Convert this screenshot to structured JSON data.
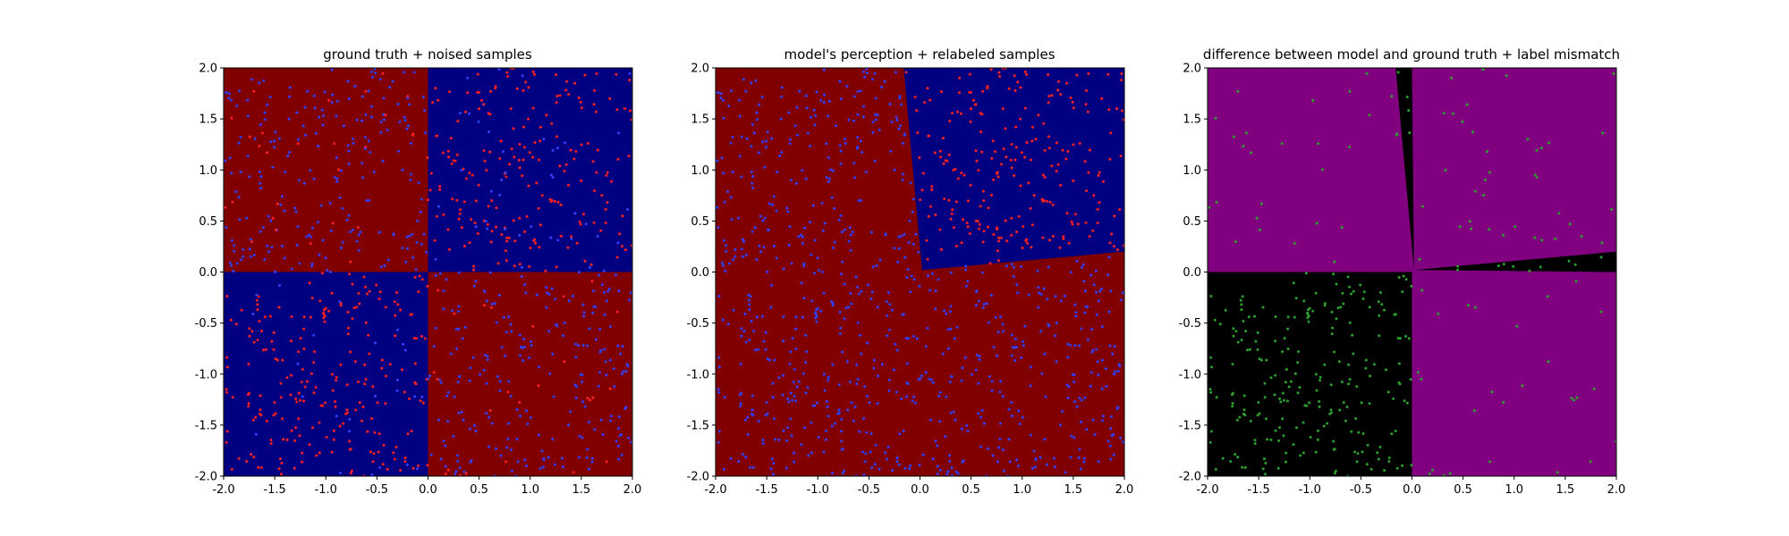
{
  "chart_data": [
    {
      "type": "heatmap",
      "title": "ground truth + noised samples",
      "xlim": [
        -2.0,
        2.0
      ],
      "ylim": [
        -2.0,
        2.0
      ],
      "xticks": [
        "-2.0",
        "-1.5",
        "-1.0",
        "-0.5",
        "0.0",
        "0.5",
        "1.0",
        "1.5",
        "2.0"
      ],
      "yticks": [
        "-2.0",
        "-1.5",
        "-1.0",
        "-0.5",
        "0.0",
        "0.5",
        "1.0",
        "1.5",
        "2.0"
      ],
      "regions": [
        {
          "polygon": [
            [
              -2,
              0
            ],
            [
              0,
              0
            ],
            [
              0,
              2
            ],
            [
              -2,
              2
            ]
          ],
          "color": "#800000"
        },
        {
          "polygon": [
            [
              0,
              0
            ],
            [
              2,
              0
            ],
            [
              2,
              2
            ],
            [
              0,
              2
            ]
          ],
          "color": "#000080"
        },
        {
          "polygon": [
            [
              -2,
              -2
            ],
            [
              0,
              -2
            ],
            [
              0,
              0
            ],
            [
              -2,
              0
            ]
          ],
          "color": "#000080"
        },
        {
          "polygon": [
            [
              0,
              -2
            ],
            [
              2,
              -2
            ],
            [
              2,
              0
            ],
            [
              0,
              0
            ]
          ],
          "color": "#800000"
        }
      ],
      "scatter": {
        "mode": "truth-colored",
        "label_noise": 0.12,
        "marker_colors": [
          "#ff2020",
          "#3040ff"
        ]
      }
    },
    {
      "type": "heatmap",
      "title": "model's perception + relabeled samples",
      "xlim": [
        -2.0,
        2.0
      ],
      "ylim": [
        -2.0,
        2.0
      ],
      "xticks": [
        "-2.0",
        "-1.5",
        "-1.0",
        "-0.5",
        "0.0",
        "0.5",
        "1.0",
        "1.5",
        "2.0"
      ],
      "yticks": [
        "-2.0",
        "-1.5",
        "-1.0",
        "-0.5",
        "0.0",
        "0.5",
        "1.0",
        "1.5",
        "2.0"
      ],
      "regions": [
        {
          "polygon": [
            [
              -2,
              -2
            ],
            [
              2,
              -2
            ],
            [
              2,
              2
            ],
            [
              -2,
              2
            ]
          ],
          "color": "#800000"
        },
        {
          "polygon": [
            [
              0.02,
              0.02
            ],
            [
              2,
              0.2
            ],
            [
              2,
              2
            ],
            [
              -0.16,
              2
            ]
          ],
          "color": "#000080"
        }
      ],
      "model_corner": [
        0.02,
        0.02
      ],
      "model_edge_top_x": -0.16,
      "model_edge_right_y": 0.2,
      "scatter": {
        "mode": "model-colored",
        "marker_colors": [
          "#ff2020",
          "#3040ff"
        ]
      }
    },
    {
      "type": "heatmap",
      "title": "difference between model and ground truth + label mismatch",
      "xlim": [
        -2.0,
        2.0
      ],
      "ylim": [
        -2.0,
        2.0
      ],
      "xticks": [
        "-2.0",
        "-1.5",
        "-1.0",
        "-0.5",
        "0.0",
        "0.5",
        "1.0",
        "1.5",
        "2.0"
      ],
      "yticks": [
        "-2.0",
        "-1.5",
        "-1.0",
        "-0.5",
        "0.0",
        "0.5",
        "1.0",
        "1.5",
        "2.0"
      ],
      "regions": [
        {
          "polygon": [
            [
              -2,
              -2
            ],
            [
              2,
              -2
            ],
            [
              2,
              2
            ],
            [
              -2,
              2
            ]
          ],
          "color": "#800080"
        },
        {
          "polygon": [
            [
              -2,
              -2
            ],
            [
              0,
              -2
            ],
            [
              0,
              0
            ],
            [
              -2,
              0
            ]
          ],
          "color": "#000000"
        },
        {
          "polygon": [
            [
              0.02,
              0.02
            ],
            [
              0,
              2
            ],
            [
              -0.16,
              2
            ]
          ],
          "color": "#000000"
        },
        {
          "polygon": [
            [
              0.02,
              0.02
            ],
            [
              2,
              0
            ],
            [
              2,
              0.2
            ]
          ],
          "color": "#000000"
        }
      ],
      "scatter": {
        "mode": "mismatch",
        "marker_colors": [
          "#2ca02c"
        ]
      }
    }
  ]
}
